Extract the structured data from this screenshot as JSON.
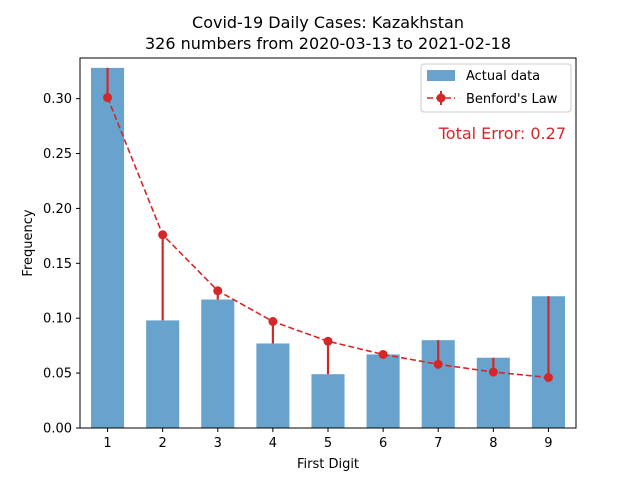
{
  "chart_data": {
    "type": "bar",
    "title": "Covid-19 Daily Cases: Kazakhstan",
    "subtitle": "326 numbers from 2020-03-13 to 2021-02-18",
    "xlabel": "First Digit",
    "ylabel": "Frequency",
    "categories": [
      "1",
      "2",
      "3",
      "4",
      "5",
      "6",
      "7",
      "8",
      "9"
    ],
    "ylim": [
      0,
      0.337
    ],
    "yticks": [
      "0.00",
      "0.05",
      "0.10",
      "0.15",
      "0.20",
      "0.25",
      "0.30"
    ],
    "series": [
      {
        "name": "Actual data",
        "type": "bar",
        "color": "#1f77b4",
        "values": [
          0.328,
          0.098,
          0.117,
          0.077,
          0.049,
          0.067,
          0.08,
          0.064,
          0.12
        ]
      },
      {
        "name": "Benford's Law",
        "type": "line",
        "color": "#d62728",
        "values": [
          0.301,
          0.176,
          0.125,
          0.097,
          0.079,
          0.067,
          0.058,
          0.051,
          0.046
        ]
      }
    ],
    "annotation": "Total Error: 0.27",
    "legend_position": "top-right",
    "grid": false
  }
}
